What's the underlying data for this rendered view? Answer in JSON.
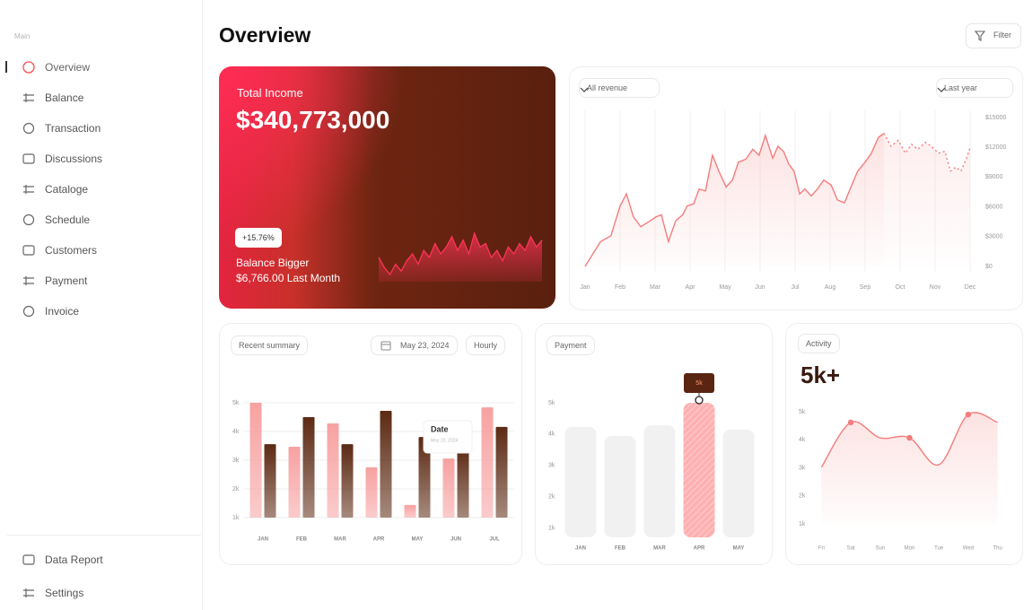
{
  "sidebar": {
    "section": "Main",
    "items": [
      "Overview",
      "Balance",
      "Transaction",
      "Discussions",
      "Cataloge",
      "Schedule",
      "Customers",
      "Payment",
      "Invoice"
    ],
    "active": 0,
    "footer": [
      "Data Report",
      "Settings"
    ]
  },
  "header": {
    "title": "Overview",
    "filter": "Filter"
  },
  "income": {
    "label": "Total Income",
    "amount": "$340,773,000",
    "badge": "+15.76%",
    "note": "Balance Bigger",
    "last_month": "$6,766.00 Last Month"
  },
  "chart_data": [
    {
      "type": "area",
      "color": "#ff3358",
      "values": [
        40,
        25,
        15,
        30,
        20,
        35,
        45,
        30,
        50,
        40,
        60,
        45,
        55,
        70,
        50,
        65,
        45,
        75,
        55,
        60,
        40,
        50,
        35,
        55,
        45,
        60,
        50,
        70,
        55,
        65
      ]
    },
    {
      "type": "line",
      "filter": "All revenue",
      "period": "Last year",
      "area": true,
      "grid": "x",
      "xlim": [
        0,
        11
      ],
      "xticks": [
        {
          "value": 0,
          "label": "Jan"
        },
        {
          "value": 1,
          "label": "Feb"
        },
        {
          "value": 2,
          "label": "Mar"
        },
        {
          "value": 3,
          "label": "Apr"
        },
        {
          "value": 4,
          "label": "May"
        },
        {
          "value": 5,
          "label": "Jun"
        },
        {
          "value": 6,
          "label": "Jul"
        },
        {
          "value": 7,
          "label": "Aug"
        },
        {
          "value": 8,
          "label": "Sep"
        },
        {
          "value": 9,
          "label": "Oct"
        },
        {
          "value": 10,
          "label": "Nov"
        },
        {
          "value": 11,
          "label": "Dec"
        }
      ],
      "ylim": [
        0,
        15000
      ],
      "yticks": [
        {
          "value": 0,
          "label": "$0"
        },
        {
          "value": 3000,
          "label": "$3000"
        },
        {
          "value": 6000,
          "label": "$6000"
        },
        {
          "value": 9000,
          "label": "$9000"
        },
        {
          "value": 12000,
          "label": "$12000"
        },
        {
          "value": 15000,
          "label": "$15000"
        }
      ],
      "series": [
        {
          "color": "#f47c7c",
          "dash": false,
          "x": [
            0,
            0.44,
            0.74,
            1.0,
            1.18,
            1.38,
            1.59,
            1.82,
            2.03,
            2.18,
            2.38,
            2.59,
            2.79,
            2.92,
            3.1,
            3.26,
            3.44,
            3.64,
            3.82,
            4.03,
            4.21,
            4.38,
            4.59,
            4.79,
            4.97,
            5.15,
            5.36,
            5.51,
            5.67,
            5.82,
            5.97,
            6.13,
            6.28,
            6.46,
            6.64,
            6.82,
            7.03,
            7.21,
            7.41,
            7.62,
            7.79,
            8.0,
            8.18,
            8.38,
            8.54
          ],
          "values": [
            0,
            2500,
            3100,
            6100,
            7300,
            5000,
            4000,
            4500,
            5000,
            5200,
            2500,
            4600,
            5200,
            6100,
            6300,
            7800,
            7600,
            11200,
            9600,
            8000,
            8700,
            10500,
            10800,
            11800,
            11200,
            13200,
            10900,
            12100,
            11600,
            10300,
            9600,
            7300,
            7800,
            7100,
            7800,
            8700,
            8200,
            6700,
            6400,
            8200,
            9600,
            10500,
            11400,
            13000,
            13400
          ]
        },
        {
          "color": "#f47c7c",
          "dash": true,
          "x": [
            8.54,
            8.74,
            8.95,
            9.15,
            9.33,
            9.51,
            9.72,
            9.9,
            10.1,
            10.28,
            10.44,
            10.59,
            10.74,
            10.9,
            11.0
          ],
          "values": [
            13400,
            12100,
            12700,
            11400,
            12300,
            11800,
            12500,
            12100,
            11400,
            11600,
            9600,
            10000,
            9600,
            10900,
            12000
          ]
        }
      ]
    },
    {
      "type": "bar",
      "title": "Recent summary",
      "date": "May 23, 2024",
      "interval": "Hourly",
      "grid": "y",
      "categories": [
        "JAN",
        "FEB",
        "MAR",
        "APR",
        "MAY",
        "JUN",
        "JUL"
      ],
      "ylim": [
        1000,
        5000
      ],
      "yticks": [
        {
          "value": 1000,
          "label": "1k"
        },
        {
          "value": 2000,
          "label": "2k"
        },
        {
          "value": 3000,
          "label": "3k"
        },
        {
          "value": 4000,
          "label": "4k"
        },
        {
          "value": 5000,
          "label": "5k"
        }
      ],
      "series": [
        {
          "color": "#f7a1a1",
          "values": [
            5000,
            3470,
            4280,
            2750,
            1440,
            3060,
            4840
          ]
        },
        {
          "color": "#5c2a14",
          "values": [
            3560,
            4500,
            3560,
            4720,
            3810,
            3410,
            4160
          ]
        }
      ],
      "tooltip": {
        "index": 5,
        "title": "Date",
        "text": "May 23, 2024"
      }
    },
    {
      "type": "bar",
      "title": "Payment",
      "grid": false,
      "categories": [
        "JAN",
        "FEB",
        "MAR",
        "APR",
        "MAY"
      ],
      "ylim": [
        700,
        5000
      ],
      "yticks": [
        {
          "value": 1000,
          "label": "1k"
        },
        {
          "value": 2000,
          "label": "2k"
        },
        {
          "value": 3000,
          "label": "3k"
        },
        {
          "value": 4000,
          "label": "4k"
        },
        {
          "value": 5000,
          "label": "5k"
        }
      ],
      "series": [
        {
          "color": "#f1f1f1",
          "values": [
            4230,
            3940,
            4280,
            5000,
            4140
          ]
        }
      ],
      "highlight": 3,
      "highlight_color": "#ffb0b0",
      "tooltip": {
        "index": 3,
        "label": "5k"
      }
    },
    {
      "type": "line",
      "title": "Activity",
      "headline": "5k+",
      "grid": false,
      "area": true,
      "smooth": true,
      "categories": [
        "Fri",
        "Sat",
        "Sun",
        "Mon",
        "Tue",
        "Wed",
        "Thu"
      ],
      "ylim": [
        1000,
        5000
      ],
      "yticks": [
        {
          "value": 1000,
          "label": "1k"
        },
        {
          "value": 2000,
          "label": "2k"
        },
        {
          "value": 3000,
          "label": "3k"
        },
        {
          "value": 4000,
          "label": "4k"
        },
        {
          "value": 5000,
          "label": "5k"
        }
      ],
      "series": [
        {
          "color": "#f47c7c",
          "values": [
            3020,
            4620,
            4070,
            4070,
            3110,
            4900,
            4620
          ]
        }
      ],
      "markers": [
        1,
        3,
        5
      ]
    }
  ]
}
